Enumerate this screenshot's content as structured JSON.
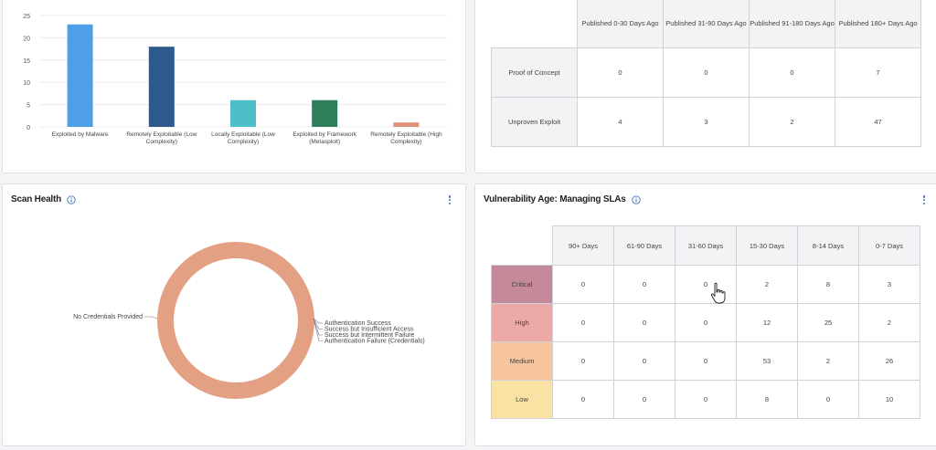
{
  "exploitability_chart": {
    "colors": [
      "#4f9ee8",
      "#2d5a8e",
      "#4dbfc8",
      "#2e7d5b",
      "#e0937a"
    ],
    "chart_data": {
      "type": "bar",
      "categories": [
        [
          "Exploited by Malware"
        ],
        [
          "Remotely Exploitable (Low",
          "Complexity)"
        ],
        [
          "Locally Exploitable (Low",
          "Complexity)"
        ],
        [
          "Exploited by Framework",
          "(Metasploit)"
        ],
        [
          "Remotely Exploitable (High",
          "Complexity)"
        ]
      ],
      "values": [
        23,
        18,
        6,
        6,
        1
      ],
      "yticks": [
        "0",
        "5",
        "10",
        "15",
        "20",
        "25"
      ],
      "ylim": [
        0,
        25
      ],
      "grid": true
    }
  },
  "exploit_age": {
    "headers": [
      "Published 0-30 Days Ago",
      "Published 31-90 Days Ago",
      "Published 91-180 Days Ago",
      "Published 180+ Days Ago"
    ],
    "rows": [
      {
        "label": "Proof of Concept",
        "cells": [
          "0",
          "0",
          "0",
          "7"
        ]
      },
      {
        "label": "Unproven Exploit",
        "cells": [
          "4",
          "3",
          "2",
          "47"
        ]
      }
    ]
  },
  "scan_health": {
    "title": "Scan Health",
    "ring_color": "#e3a083",
    "chart_data": {
      "type": "pie",
      "slices": [
        {
          "label": "No Credentials Provided",
          "value": 100
        },
        {
          "label": "Authentication Success",
          "value": 0
        },
        {
          "label": "Success but Insufficient Access",
          "value": 0
        },
        {
          "label": "Success but Intermittent Failure",
          "value": 0
        },
        {
          "label": "Authentication Failure (Credentials)",
          "value": 0
        }
      ]
    }
  },
  "sla": {
    "title": "Vulnerability Age: Managing SLAs",
    "headers": [
      "90+ Days",
      "61-90 Days",
      "31-60 Days",
      "15-30 Days",
      "8-14 Days",
      "0-7 Days"
    ],
    "rows": [
      {
        "label": "Critical",
        "color": "#c48a9a",
        "cells": [
          "0",
          "0",
          "0",
          "2",
          "8",
          "3"
        ]
      },
      {
        "label": "High",
        "color": "#eda8a8",
        "cells": [
          "0",
          "0",
          "0",
          "12",
          "25",
          "2"
        ]
      },
      {
        "label": "Medium",
        "color": "#f6c59e",
        "cells": [
          "0",
          "0",
          "0",
          "53",
          "2",
          "26"
        ]
      },
      {
        "label": "Low",
        "color": "#f9e2a4",
        "cells": [
          "0",
          "0",
          "0",
          "8",
          "0",
          "10"
        ]
      }
    ]
  }
}
